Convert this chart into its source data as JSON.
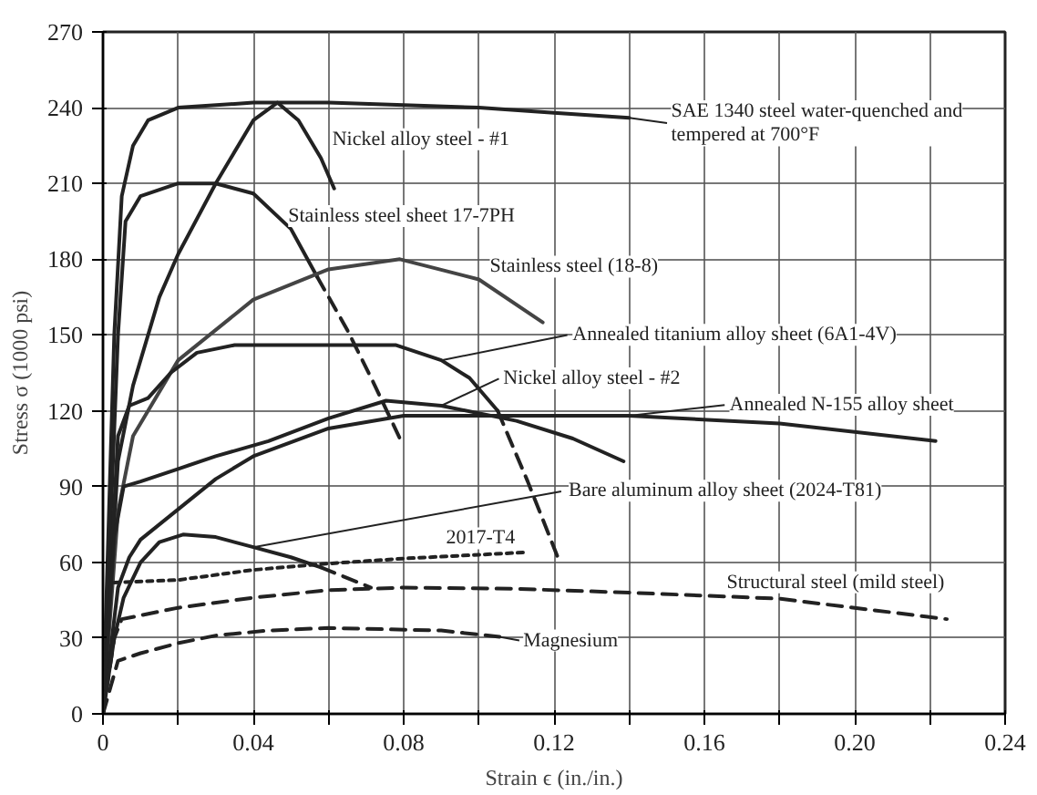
{
  "chart_data": {
    "type": "line",
    "xlabel": "Strain ϵ (in./in.)",
    "ylabel": "Stress σ (1000 psi)",
    "xlim": [
      0,
      0.24
    ],
    "ylim": [
      0,
      270
    ],
    "xticks": [
      0,
      {
        "value": 0.02,
        "label": null
      },
      0.04,
      {
        "value": 0.06,
        "label": null
      },
      0.08,
      {
        "value": 0.1,
        "label": null
      },
      0.12,
      {
        "value": 0.14,
        "label": null
      },
      0.16,
      {
        "value": 0.18,
        "label": null
      },
      {
        "value": 0.2,
        "label": "0.20"
      },
      {
        "value": 0.22,
        "label": null
      },
      0.24
    ],
    "yticks": [
      0,
      30,
      60,
      90,
      120,
      150,
      180,
      210,
      240,
      270
    ],
    "grid": true,
    "marker": "none",
    "line_style": "solid",
    "series": [
      {
        "color": "#222222",
        "x": [
          0,
          0.003,
          0.005,
          0.008,
          0.012,
          0.02,
          0.04,
          0.06,
          0.08,
          0.1,
          0.12,
          0.14
        ],
        "values": [
          0,
          150,
          205,
          225,
          235,
          240,
          242,
          242,
          241,
          240,
          238,
          236
        ]
      },
      {
        "color": "#222222",
        "x": [
          0,
          0.004,
          0.008,
          0.015,
          0.02,
          0.03,
          0.04,
          0.0464,
          0.052,
          0.058,
          0.0615
        ],
        "values": [
          0,
          100,
          130,
          165,
          182,
          210,
          235,
          242,
          235,
          220,
          208
        ]
      },
      {
        "color": "#222222",
        "x": [
          0,
          0.004,
          0.006,
          0.01,
          0.02,
          0.03,
          0.04,
          0.05,
          0.057
        ],
        "values": [
          0,
          150,
          195,
          205,
          210,
          210,
          206,
          192,
          173
        ]
      },
      {
        "color": "#222222",
        "line_style": "dashed",
        "x": [
          0.057,
          0.065,
          0.072,
          0.079
        ],
        "values": [
          173,
          152,
          131,
          109
        ]
      },
      {
        "color": "#444444",
        "x": [
          0,
          0.004,
          0.008,
          0.02,
          0.04,
          0.06,
          0.079,
          0.1,
          0.117
        ],
        "values": [
          0,
          80,
          110,
          140,
          164,
          176,
          180,
          172,
          155
        ]
      },
      {
        "color": "#222222",
        "x": [
          0,
          0.004,
          0.007,
          0.012,
          0.018,
          0.025,
          0.035,
          0.06,
          0.078,
          0.09,
          0.0975,
          0.105
        ],
        "values": [
          0,
          110,
          122,
          125,
          135,
          143,
          146,
          146,
          146,
          140,
          133,
          120
        ]
      },
      {
        "color": "#222222",
        "line_style": "dashed",
        "x": [
          0.105,
          0.113,
          0.121
        ],
        "values": [
          120,
          92,
          62
        ]
      },
      {
        "color": "#222222",
        "x": [
          0,
          0.003,
          0.0055,
          0.01,
          0.02,
          0.03,
          0.044,
          0.06,
          0.0753,
          0.09,
          0.11,
          0.125,
          0.1385
        ],
        "values": [
          0,
          70,
          90,
          92,
          97,
          102,
          108,
          117,
          124,
          122,
          116,
          109,
          100
        ]
      },
      {
        "color": "#222222",
        "x": [
          0,
          0.004,
          0.007,
          0.01,
          0.02,
          0.03,
          0.04,
          0.06,
          0.08,
          0.1,
          0.14,
          0.18,
          0.2215
        ],
        "values": [
          0,
          50,
          62,
          69,
          81,
          93,
          102,
          113,
          118,
          118,
          118,
          115,
          108
        ]
      },
      {
        "color": "#222222",
        "x": [
          0,
          0.003,
          0.0055,
          0.01,
          0.015,
          0.0213,
          0.03,
          0.04,
          0.05,
          0.058
        ],
        "values": [
          0,
          30,
          46,
          60,
          68,
          71,
          70,
          66,
          62,
          58
        ]
      },
      {
        "color": "#222222",
        "line_style": "dashed",
        "x": [
          0.058,
          0.0713
        ],
        "values": [
          58,
          50
        ]
      },
      {
        "color": "#222222",
        "line_style": "dotted",
        "x": [
          0.003,
          0.02,
          0.04,
          0.06,
          0.08,
          0.1,
          0.113
        ],
        "values": [
          52,
          53,
          57,
          59.5,
          61.5,
          63,
          64
        ]
      },
      {
        "color": "#222222",
        "line_style": "dashed",
        "x": [
          0,
          0.003,
          0.005,
          0.02,
          0.04,
          0.06,
          0.08,
          0.11,
          0.14,
          0.18,
          0.2245
        ],
        "values": [
          0,
          30,
          37.5,
          42,
          46,
          49,
          50,
          49.5,
          48,
          45.6,
          37.5
        ]
      },
      {
        "color": "#222222",
        "line_style": "dashed",
        "x": [
          0,
          0.004,
          0.01,
          0.02,
          0.03,
          0.044,
          0.06,
          0.075,
          0.09,
          0.1055
        ],
        "values": [
          0,
          21,
          24,
          28,
          31,
          33,
          34,
          33.5,
          33,
          30.5
        ]
      }
    ],
    "annotations": [
      {
        "text": "SAE 1340 steel water-quenched and\ntempered at 700°F",
        "x": 0.14,
        "y": 236
      },
      {
        "text": "Nickel alloy steel - #1",
        "x": 0.0615,
        "y": 208
      },
      {
        "text": "Stainless steel sheet 17-7PH",
        "x": 0.05,
        "y": 192
      },
      {
        "text": "Stainless steel (18-8)",
        "x": 0.1,
        "y": 172
      },
      {
        "text": "Annealed titanium alloy sheet (6A1-4V)",
        "x": 0.09,
        "y": 140
      },
      {
        "text": "Nickel alloy steel - #2",
        "x": 0.09,
        "y": 122
      },
      {
        "text": "Annealed N-155 alloy sheet",
        "x": 0.14,
        "y": 118
      },
      {
        "text": "Bare aluminum alloy sheet (2024-T81)",
        "x": 0.04,
        "y": 66
      },
      {
        "text": "2017-T4",
        "x": 0.1,
        "y": 63
      },
      {
        "text": "Structural steel (mild steel)",
        "x": 0.18,
        "y": 45.6
      },
      {
        "text": "Magnesium",
        "x": 0.1055,
        "y": 30.5
      }
    ]
  }
}
